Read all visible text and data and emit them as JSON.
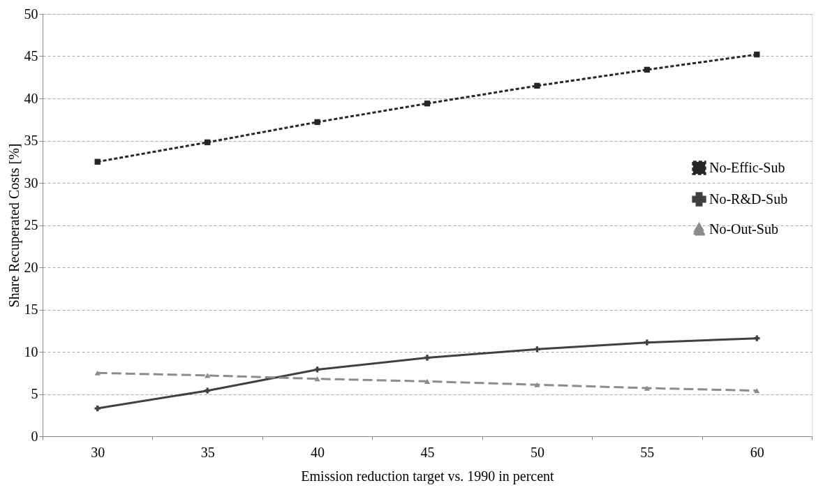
{
  "chart_data": {
    "type": "line",
    "xlabel": "Emission reduction target vs. 1990 in percent",
    "ylabel": "Share Recuperated Costs [%]",
    "categories": [
      "30",
      "35",
      "40",
      "45",
      "50",
      "55",
      "60"
    ],
    "series": [
      {
        "name": "No-Effic-Sub",
        "color": "#262626",
        "line_style": "dashed",
        "marker": "square",
        "values": [
          32.5,
          34.8,
          37.2,
          39.4,
          41.5,
          43.4,
          45.2
        ]
      },
      {
        "name": "No-R&D-Sub",
        "color": "#404040",
        "line_style": "solid",
        "marker": "cross",
        "values": [
          3.3,
          5.4,
          7.9,
          9.3,
          10.3,
          11.1,
          11.6
        ]
      },
      {
        "name": "No-Out-Sub",
        "color": "#8c8c8c",
        "line_style": "dashed",
        "marker": "triangle",
        "values": [
          7.5,
          7.2,
          6.8,
          6.5,
          6.1,
          5.7,
          5.4
        ]
      }
    ],
    "ylim": [
      0,
      50
    ],
    "yticks": [
      0,
      5,
      10,
      15,
      20,
      25,
      30,
      35,
      40,
      45,
      50
    ],
    "grid": "y",
    "legend": "right"
  }
}
